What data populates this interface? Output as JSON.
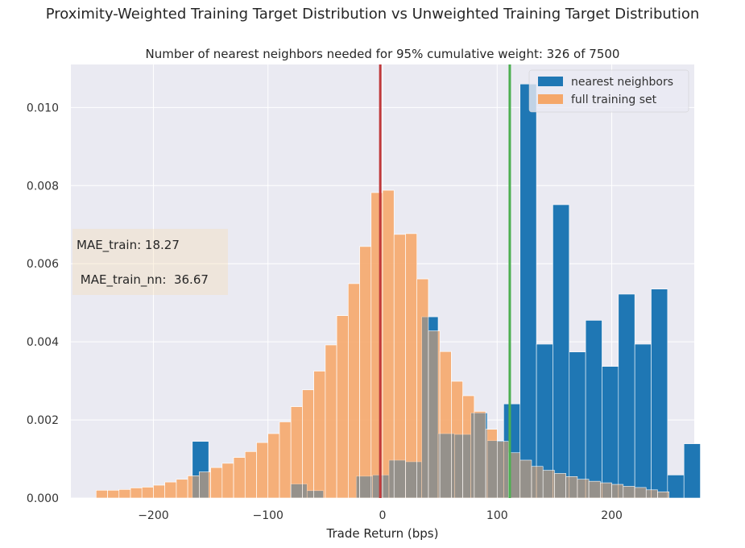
{
  "suptitle": "Proximity-Weighted Training Target Distribution vs Unweighted Training Target Distribution",
  "chart_data": {
    "type": "bar",
    "title": "Number of nearest neighbors needed for 95% cumulative weight: 326 of 7500",
    "xlabel": "Trade Return (bps)",
    "ylabel": "",
    "xlim": [
      -272,
      272
    ],
    "ylim": [
      0,
      0.0111
    ],
    "xticks": [
      -200,
      -100,
      0,
      100,
      200
    ],
    "xtick_labels": [
      "−200",
      "−100",
      "0",
      "100",
      "200"
    ],
    "yticks": [
      0,
      0.002,
      0.004,
      0.006,
      0.008,
      0.01
    ],
    "ytick_labels": [
      "0.000",
      "0.002",
      "0.004",
      "0.006",
      "0.008",
      "0.010"
    ],
    "grid": true,
    "legend_position": "top-right",
    "series": [
      {
        "name": "full training set",
        "color": "#f5a76a",
        "opacity": 0.75,
        "bin_start": -250,
        "bin_width": 10,
        "values": [
          0.0002,
          0.0002,
          0.00022,
          0.00026,
          0.00028,
          0.00033,
          0.00041,
          0.00048,
          0.00057,
          0.00067,
          0.00078,
          0.00089,
          0.00104,
          0.00119,
          0.00142,
          0.00165,
          0.00195,
          0.00234,
          0.00277,
          0.00325,
          0.00392,
          0.00467,
          0.00549,
          0.00644,
          0.00782,
          0.00788,
          0.00675,
          0.00677,
          0.00561,
          0.00428,
          0.00375,
          0.00299,
          0.00262,
          0.00222,
          0.00176,
          0.00145,
          0.00116,
          0.00097,
          0.00081,
          0.00071,
          0.00063,
          0.00055,
          0.00048,
          0.00043,
          0.00039,
          0.00035,
          0.0003,
          0.00027,
          0.00021,
          0.00016
        ]
      },
      {
        "name": "nearest neighbors",
        "color": "#1f77b4",
        "bin_start": -166,
        "bin_width": 14.3,
        "values": [
          0.00145,
          0,
          0,
          0,
          0,
          0,
          0.00036,
          0.00019,
          0,
          0,
          0.00056,
          0.00059,
          0.00097,
          0.00093,
          0.00464,
          0.00165,
          0.00163,
          0.00218,
          0.00147,
          0.00241,
          0.0106,
          0.00394,
          0.00751,
          0.00374,
          0.00455,
          0.00337,
          0.00522,
          0.00394,
          0.00535,
          0.00059,
          0.00139
        ]
      }
    ],
    "vlines": [
      {
        "x": -2,
        "color": "#c0393b"
      },
      {
        "x": 111,
        "color": "#4caf50"
      }
    ],
    "annotations": {
      "mae_train": "MAE_train:  18.27",
      "mae_train_nn": " MAE_train_nn:  36.67"
    }
  }
}
